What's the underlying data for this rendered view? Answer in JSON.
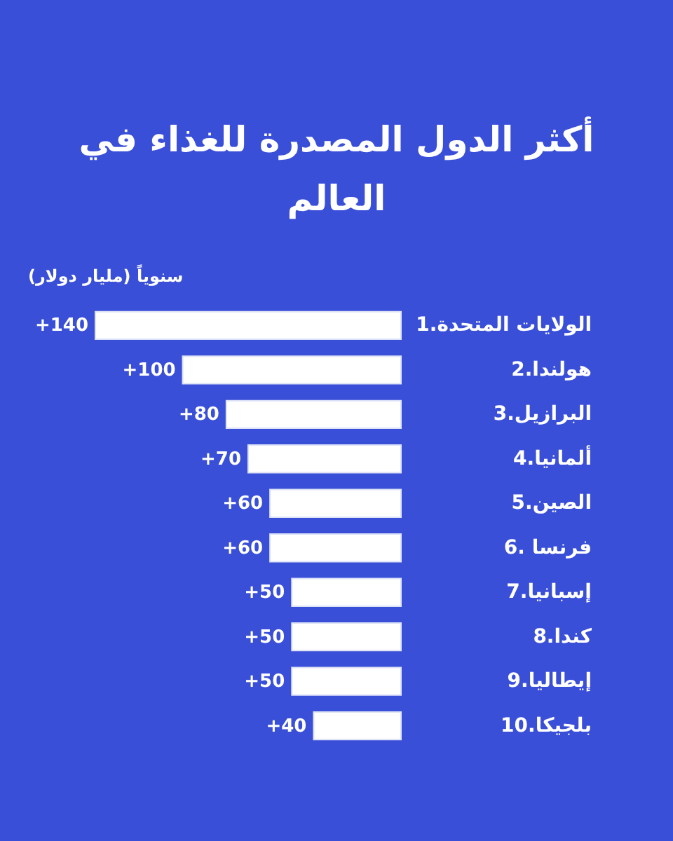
{
  "chart_data": {
    "type": "bar",
    "orientation": "horizontal",
    "title": "أكثر الدول المصدرة للغذاء في العالم",
    "subtitle": "(مليار دولار) سنوياً",
    "categories": [
      "1.الولايات المتحدة",
      "2.هولندا",
      "3.البرازيل",
      "4.ألمانيا",
      "5.الصين",
      "6. فرنسا",
      "7.إسبانيا",
      "8.كندا",
      "9.إيطاليا",
      "10.بلجيكا"
    ],
    "values": [
      140,
      100,
      80,
      70,
      60,
      60,
      50,
      50,
      50,
      40
    ],
    "value_labels": [
      "+140",
      "+100",
      "+80",
      "+70",
      "+60",
      "+60",
      "+50",
      "+50",
      "+50",
      "+40"
    ],
    "color": "#ffffff"
  }
}
